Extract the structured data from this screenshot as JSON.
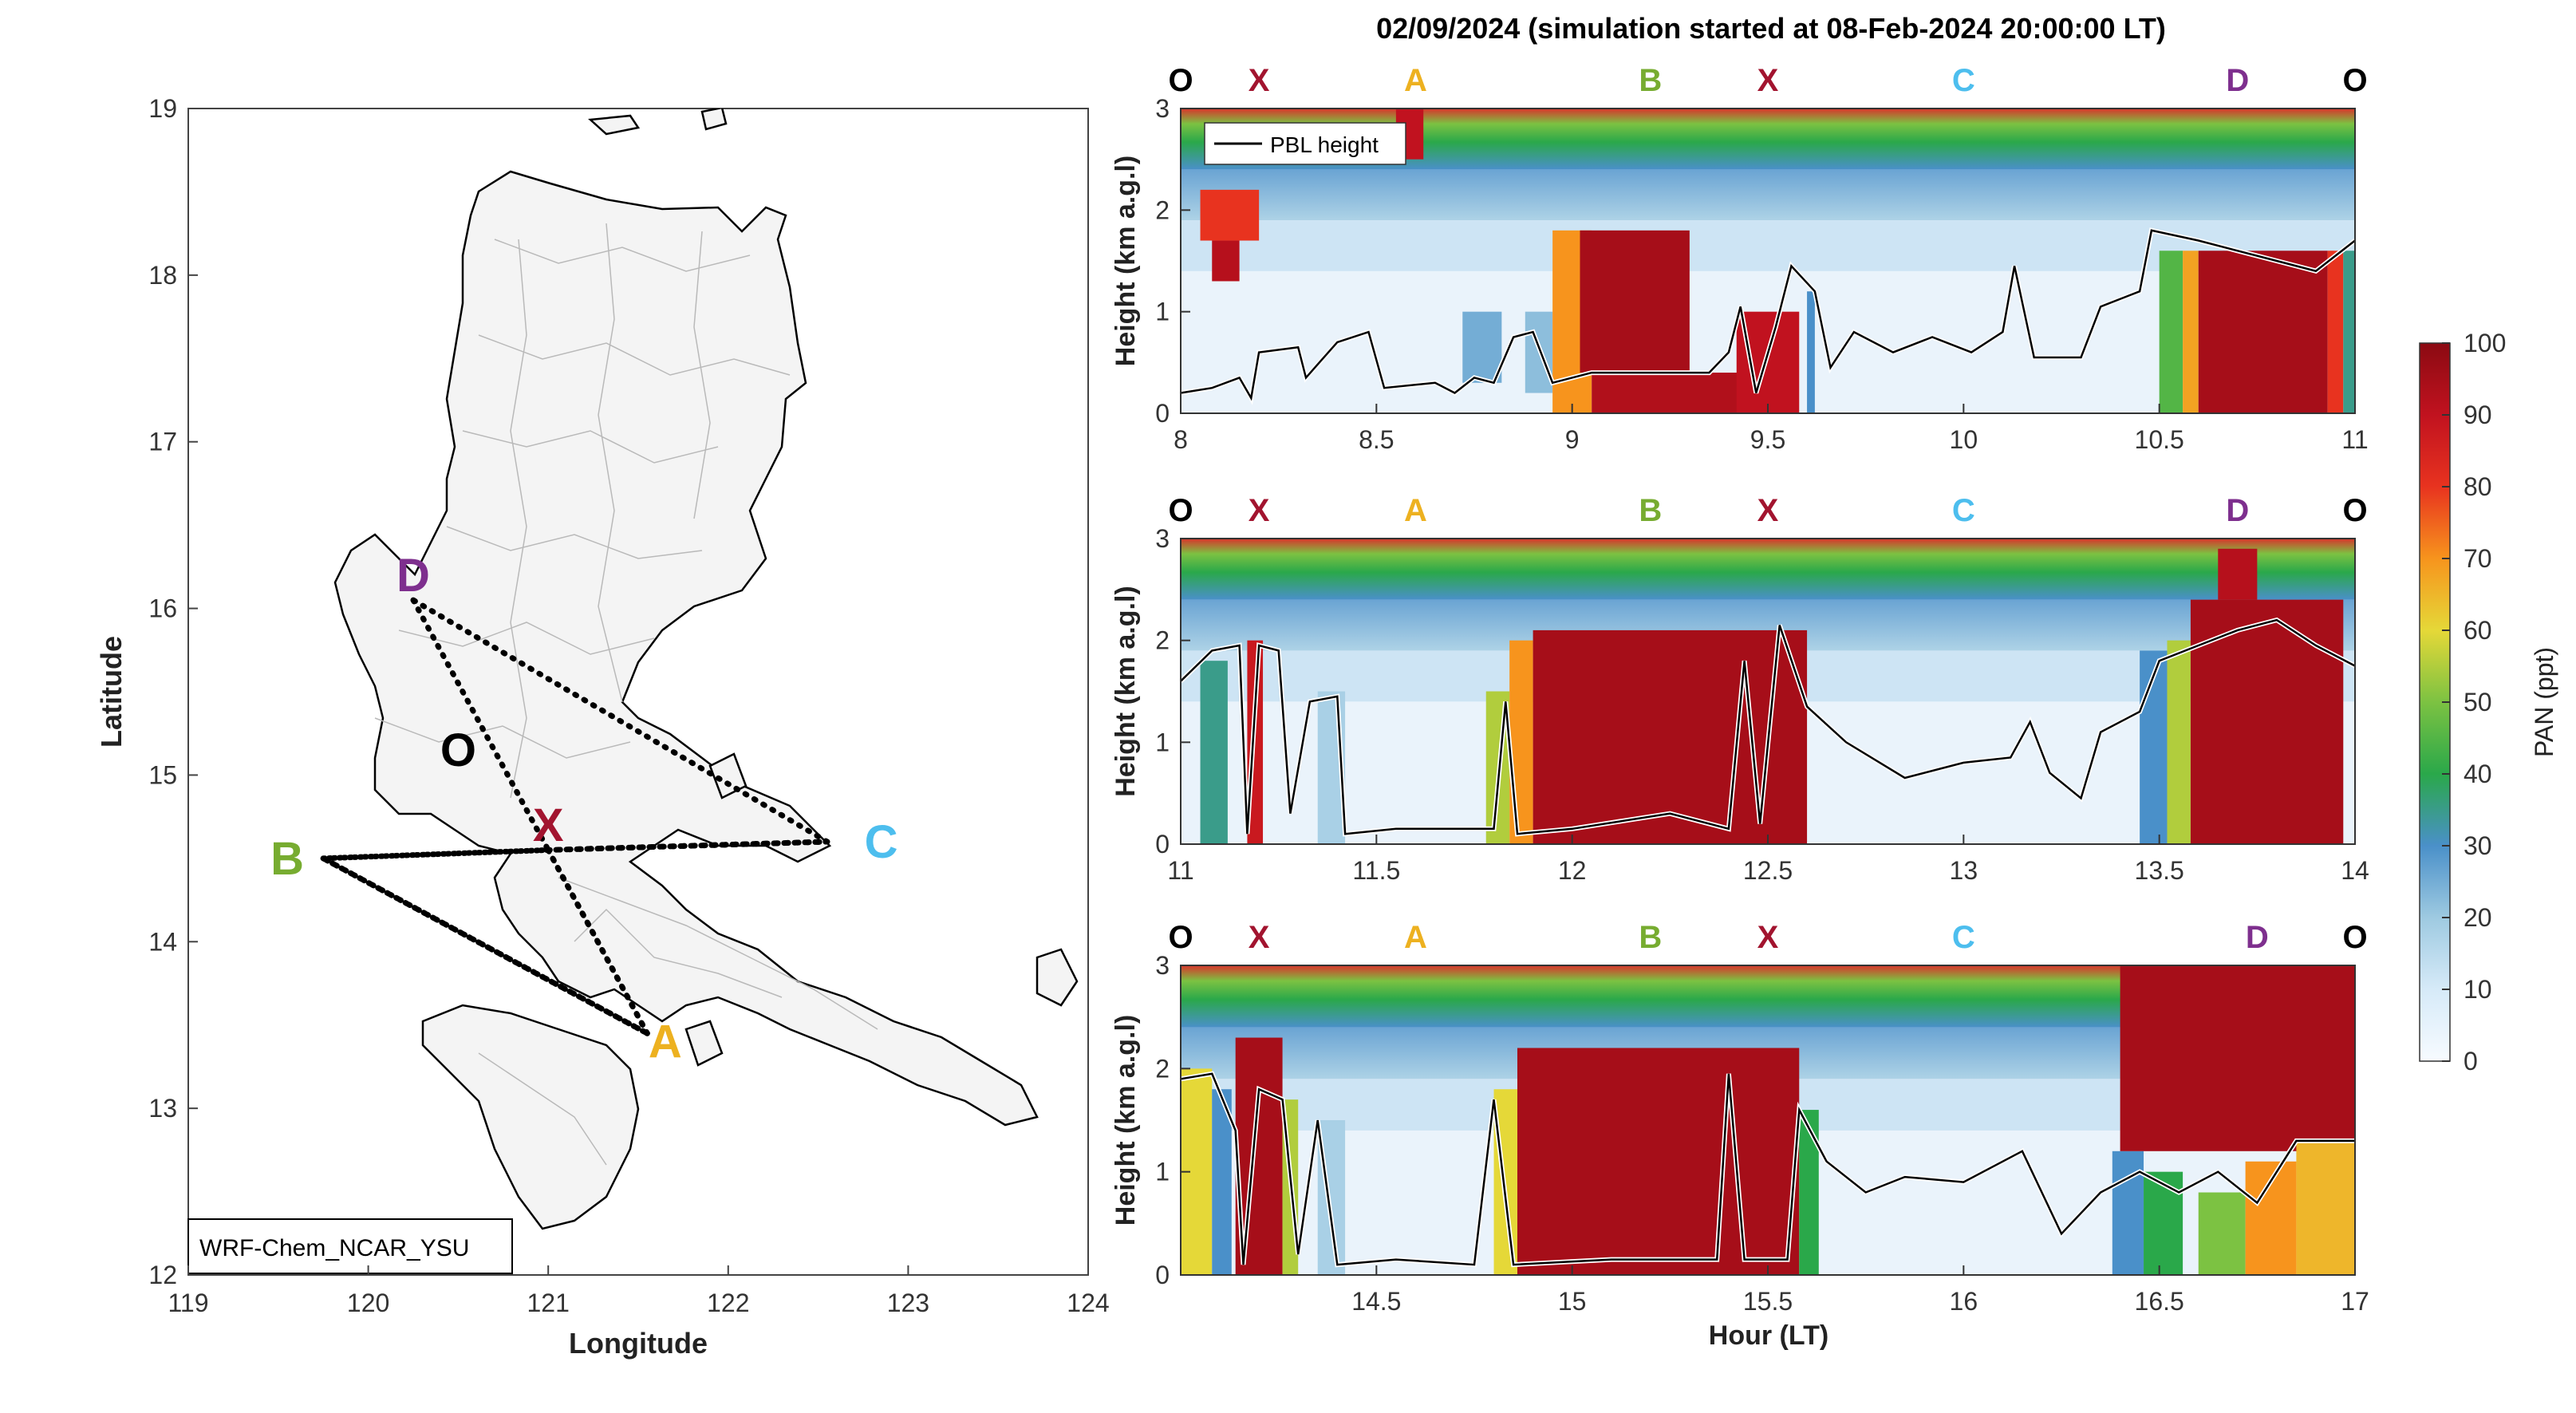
{
  "title": "02/09/2024 (simulation started at 08-Feb-2024 20:00:00 LT)",
  "colors": {
    "O": "#000000",
    "X": "#a2142f",
    "A": "#edb120",
    "B": "#77ac30",
    "C": "#4dbeee",
    "D": "#7e2f8e"
  },
  "chart_data": [
    {
      "type": "map",
      "xlabel": "Longitude",
      "ylabel": "Latitude",
      "xlim": [
        119,
        124
      ],
      "ylim": [
        12,
        19
      ],
      "xticks": [
        "119",
        "120",
        "121",
        "122",
        "123",
        "124"
      ],
      "yticks": [
        "12",
        "13",
        "14",
        "15",
        "16",
        "17",
        "18",
        "19"
      ],
      "model_label": "WRF-Chem_NCAR_YSU",
      "sites": [
        {
          "label": "D",
          "lon": 120.25,
          "lat": 16.2
        },
        {
          "label": "O",
          "lon": 120.5,
          "lat": 15.15
        },
        {
          "label": "X",
          "lon": 121.0,
          "lat": 14.7
        },
        {
          "label": "B",
          "lon": 119.55,
          "lat": 14.5
        },
        {
          "label": "C",
          "lon": 122.85,
          "lat": 14.6
        },
        {
          "label": "A",
          "lon": 121.65,
          "lat": 13.4
        }
      ],
      "route": [
        {
          "lon": 120.25,
          "lat": 16.05
        },
        {
          "lon": 121.0,
          "lat": 14.55
        },
        {
          "lon": 119.75,
          "lat": 14.5
        },
        {
          "lon": 121.0,
          "lat": 14.55
        },
        {
          "lon": 122.55,
          "lat": 14.6
        },
        {
          "lon": 121.0,
          "lat": 14.55
        },
        {
          "lon": 121.55,
          "lat": 13.45
        },
        {
          "lon": 119.75,
          "lat": 14.5
        },
        {
          "lon": 121.55,
          "lat": 13.45
        },
        {
          "lon": 121.0,
          "lat": 14.55
        },
        {
          "lon": 122.55,
          "lat": 14.6
        },
        {
          "lon": 120.25,
          "lat": 16.05
        }
      ]
    },
    {
      "type": "heatmap",
      "ylabel": "Height (km a.g.l)",
      "xlim": [
        8,
        11
      ],
      "ylim": [
        0,
        3
      ],
      "xticks": [
        "8",
        "8.5",
        "9",
        "9.5",
        "10",
        "10.5",
        "11"
      ],
      "yticks": [
        "0",
        "1",
        "2",
        "3"
      ],
      "legend": "PBL height",
      "sites": [
        {
          "label": "O",
          "t": 8.0
        },
        {
          "label": "X",
          "t": 8.2
        },
        {
          "label": "A",
          "t": 8.6
        },
        {
          "label": "B",
          "t": 9.2
        },
        {
          "label": "X",
          "t": 9.5
        },
        {
          "label": "C",
          "t": 10.0
        },
        {
          "label": "D",
          "t": 10.7
        },
        {
          "label": "O",
          "t": 11.0
        }
      ],
      "pbl": [
        {
          "t": 8.0,
          "h": 0.2
        },
        {
          "t": 8.08,
          "h": 0.25
        },
        {
          "t": 8.15,
          "h": 0.35
        },
        {
          "t": 8.18,
          "h": 0.15
        },
        {
          "t": 8.2,
          "h": 0.6
        },
        {
          "t": 8.3,
          "h": 0.65
        },
        {
          "t": 8.32,
          "h": 0.35
        },
        {
          "t": 8.4,
          "h": 0.7
        },
        {
          "t": 8.48,
          "h": 0.8
        },
        {
          "t": 8.52,
          "h": 0.25
        },
        {
          "t": 8.65,
          "h": 0.3
        },
        {
          "t": 8.7,
          "h": 0.2
        },
        {
          "t": 8.75,
          "h": 0.35
        },
        {
          "t": 8.8,
          "h": 0.3
        },
        {
          "t": 8.85,
          "h": 0.75
        },
        {
          "t": 8.9,
          "h": 0.8
        },
        {
          "t": 8.95,
          "h": 0.3
        },
        {
          "t": 9.05,
          "h": 0.4
        },
        {
          "t": 9.35,
          "h": 0.4
        },
        {
          "t": 9.4,
          "h": 0.6
        },
        {
          "t": 9.43,
          "h": 1.05
        },
        {
          "t": 9.47,
          "h": 0.2
        },
        {
          "t": 9.52,
          "h": 0.85
        },
        {
          "t": 9.56,
          "h": 1.45
        },
        {
          "t": 9.62,
          "h": 1.2
        },
        {
          "t": 9.66,
          "h": 0.45
        },
        {
          "t": 9.72,
          "h": 0.8
        },
        {
          "t": 9.82,
          "h": 0.6
        },
        {
          "t": 9.92,
          "h": 0.75
        },
        {
          "t": 10.02,
          "h": 0.6
        },
        {
          "t": 10.1,
          "h": 0.8
        },
        {
          "t": 10.13,
          "h": 1.45
        },
        {
          "t": 10.18,
          "h": 0.55
        },
        {
          "t": 10.3,
          "h": 0.55
        },
        {
          "t": 10.35,
          "h": 1.05
        },
        {
          "t": 10.45,
          "h": 1.2
        },
        {
          "t": 10.48,
          "h": 1.8
        },
        {
          "t": 10.6,
          "h": 1.7
        },
        {
          "t": 10.7,
          "h": 1.6
        },
        {
          "t": 10.8,
          "h": 1.5
        },
        {
          "t": 10.9,
          "h": 1.4
        },
        {
          "t": 11.0,
          "h": 1.7
        }
      ]
    },
    {
      "type": "heatmap",
      "ylabel": "Height (km a.g.l)",
      "xlim": [
        11,
        14
      ],
      "ylim": [
        0,
        3
      ],
      "xticks": [
        "11",
        "11.5",
        "12",
        "12.5",
        "13",
        "13.5",
        "14"
      ],
      "yticks": [
        "0",
        "1",
        "2",
        "3"
      ],
      "sites": [
        {
          "label": "O",
          "t": 11.0
        },
        {
          "label": "X",
          "t": 11.2
        },
        {
          "label": "A",
          "t": 11.6
        },
        {
          "label": "B",
          "t": 12.2
        },
        {
          "label": "X",
          "t": 12.5
        },
        {
          "label": "C",
          "t": 13.0
        },
        {
          "label": "D",
          "t": 13.7
        },
        {
          "label": "O",
          "t": 14.0
        }
      ],
      "pbl": [
        {
          "t": 11.0,
          "h": 1.6
        },
        {
          "t": 11.08,
          "h": 1.9
        },
        {
          "t": 11.15,
          "h": 1.95
        },
        {
          "t": 11.17,
          "h": 0.1
        },
        {
          "t": 11.2,
          "h": 1.95
        },
        {
          "t": 11.25,
          "h": 1.9
        },
        {
          "t": 11.28,
          "h": 0.3
        },
        {
          "t": 11.33,
          "h": 1.4
        },
        {
          "t": 11.4,
          "h": 1.45
        },
        {
          "t": 11.42,
          "h": 0.1
        },
        {
          "t": 11.55,
          "h": 0.15
        },
        {
          "t": 11.8,
          "h": 0.15
        },
        {
          "t": 11.83,
          "h": 1.4
        },
        {
          "t": 11.86,
          "h": 0.1
        },
        {
          "t": 12.0,
          "h": 0.15
        },
        {
          "t": 12.25,
          "h": 0.3
        },
        {
          "t": 12.4,
          "h": 0.15
        },
        {
          "t": 12.44,
          "h": 1.8
        },
        {
          "t": 12.48,
          "h": 0.2
        },
        {
          "t": 12.53,
          "h": 2.15
        },
        {
          "t": 12.6,
          "h": 1.35
        },
        {
          "t": 12.7,
          "h": 1.0
        },
        {
          "t": 12.85,
          "h": 0.65
        },
        {
          "t": 13.0,
          "h": 0.8
        },
        {
          "t": 13.12,
          "h": 0.85
        },
        {
          "t": 13.17,
          "h": 1.2
        },
        {
          "t": 13.22,
          "h": 0.7
        },
        {
          "t": 13.3,
          "h": 0.45
        },
        {
          "t": 13.35,
          "h": 1.1
        },
        {
          "t": 13.45,
          "h": 1.3
        },
        {
          "t": 13.5,
          "h": 1.8
        },
        {
          "t": 13.6,
          "h": 1.95
        },
        {
          "t": 13.7,
          "h": 2.1
        },
        {
          "t": 13.8,
          "h": 2.2
        },
        {
          "t": 13.9,
          "h": 1.95
        },
        {
          "t": 14.0,
          "h": 1.75
        }
      ]
    },
    {
      "type": "heatmap",
      "ylabel": "Height (km a.g.l)",
      "xlabel": "Hour (LT)",
      "xlim": [
        14,
        17
      ],
      "ylim": [
        0,
        3
      ],
      "xticks": [
        "14.5",
        "15",
        "15.5",
        "16",
        "16.5",
        "17"
      ],
      "yticks": [
        "0",
        "1",
        "2",
        "3"
      ],
      "sites": [
        {
          "label": "O",
          "t": 14.0
        },
        {
          "label": "X",
          "t": 14.2
        },
        {
          "label": "A",
          "t": 14.6
        },
        {
          "label": "B",
          "t": 15.2
        },
        {
          "label": "X",
          "t": 15.5
        },
        {
          "label": "C",
          "t": 16.0
        },
        {
          "label": "D",
          "t": 16.75
        },
        {
          "label": "O",
          "t": 17.0
        }
      ],
      "pbl": [
        {
          "t": 14.0,
          "h": 1.9
        },
        {
          "t": 14.08,
          "h": 1.95
        },
        {
          "t": 14.14,
          "h": 1.4
        },
        {
          "t": 14.16,
          "h": 0.1
        },
        {
          "t": 14.2,
          "h": 1.8
        },
        {
          "t": 14.26,
          "h": 1.7
        },
        {
          "t": 14.3,
          "h": 0.2
        },
        {
          "t": 14.35,
          "h": 1.5
        },
        {
          "t": 14.4,
          "h": 0.1
        },
        {
          "t": 14.55,
          "h": 0.15
        },
        {
          "t": 14.75,
          "h": 0.1
        },
        {
          "t": 14.8,
          "h": 1.7
        },
        {
          "t": 14.85,
          "h": 0.1
        },
        {
          "t": 15.1,
          "h": 0.15
        },
        {
          "t": 15.37,
          "h": 0.15
        },
        {
          "t": 15.4,
          "h": 1.95
        },
        {
          "t": 15.44,
          "h": 0.15
        },
        {
          "t": 15.55,
          "h": 0.15
        },
        {
          "t": 15.58,
          "h": 1.6
        },
        {
          "t": 15.65,
          "h": 1.1
        },
        {
          "t": 15.75,
          "h": 0.8
        },
        {
          "t": 15.85,
          "h": 0.95
        },
        {
          "t": 16.0,
          "h": 0.9
        },
        {
          "t": 16.15,
          "h": 1.2
        },
        {
          "t": 16.25,
          "h": 0.4
        },
        {
          "t": 16.35,
          "h": 0.8
        },
        {
          "t": 16.45,
          "h": 1.0
        },
        {
          "t": 16.55,
          "h": 0.8
        },
        {
          "t": 16.65,
          "h": 1.0
        },
        {
          "t": 16.75,
          "h": 0.7
        },
        {
          "t": 16.85,
          "h": 1.3
        },
        {
          "t": 17.0,
          "h": 1.3
        }
      ]
    },
    {
      "type": "colorbar",
      "label": "PAN (ppt)",
      "ticks": [
        "0",
        "10",
        "20",
        "30",
        "40",
        "50",
        "60",
        "70",
        "80",
        "90",
        "100"
      ],
      "range": [
        0,
        100
      ]
    }
  ]
}
